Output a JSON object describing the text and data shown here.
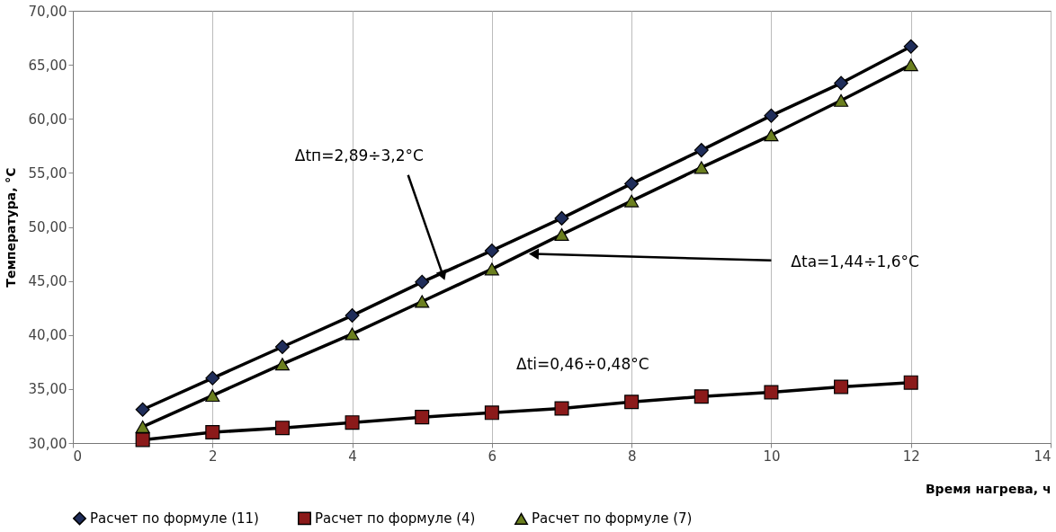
{
  "chart_data": {
    "type": "line",
    "xlabel": "Время нагрева, ч",
    "ylabel": "Температура, °C",
    "x": [
      1,
      2,
      3,
      4,
      5,
      6,
      7,
      8,
      9,
      10,
      11,
      12
    ],
    "series": [
      {
        "name": "Расчет по формуле (11)",
        "color": "#1f2d5a",
        "marker": "diamond",
        "values": [
          33.1,
          36.0,
          38.9,
          41.8,
          44.9,
          47.8,
          50.8,
          54.0,
          57.1,
          60.3,
          63.3,
          66.7
        ]
      },
      {
        "name": "Расчет по формуле (4)",
        "color": "#8b1a1a",
        "marker": "square",
        "values": [
          30.3,
          31.0,
          31.4,
          31.9,
          32.4,
          32.8,
          33.2,
          33.8,
          34.3,
          34.7,
          35.2,
          35.6
        ]
      },
      {
        "name": "Расчет по формуле (7)",
        "color": "#6b7f1f",
        "marker": "triangle",
        "values": [
          31.5,
          34.4,
          37.3,
          40.1,
          43.1,
          46.1,
          49.3,
          52.4,
          55.5,
          58.5,
          61.7,
          65.0
        ]
      }
    ],
    "xlim": [
      0,
      14
    ],
    "xticks": [
      0,
      2,
      4,
      6,
      8,
      10,
      12,
      14
    ],
    "ylim": [
      30,
      70
    ],
    "yticks": [
      {
        "value": 30,
        "label": "30,00"
      },
      {
        "value": 35,
        "label": "35,00"
      },
      {
        "value": 40,
        "label": "40,00"
      },
      {
        "value": 45,
        "label": "45,00"
      },
      {
        "value": 50,
        "label": "50,00"
      },
      {
        "value": 55,
        "label": "55,00"
      },
      {
        "value": 60,
        "label": "60,00"
      },
      {
        "value": 65,
        "label": "65,00"
      },
      {
        "value": 70,
        "label": "70,00"
      }
    ],
    "annotations": [
      {
        "text": "Δtп=2,89÷3,2°C",
        "x": 5.3,
        "y": 45.5
      },
      {
        "text": "Δta=1,44÷1,6°C",
        "x": 6.6,
        "y": 47.5
      },
      "Δti=0,46÷0,48°C"
    ],
    "grid": "x",
    "legend": "bottom",
    "line_style": "solid"
  }
}
